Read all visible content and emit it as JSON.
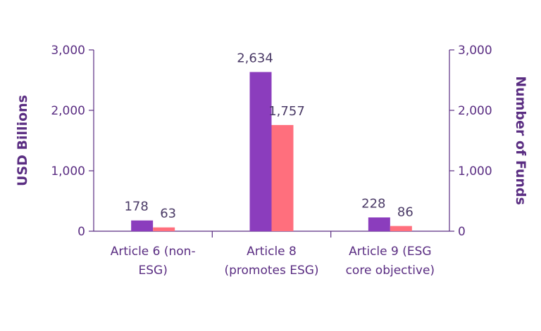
{
  "colors": {
    "axis": "#5a2d82",
    "series_1": "#8b3dbd",
    "series_2": "#ff6f7d"
  },
  "chart_data": {
    "type": "bar",
    "categories": [
      [
        "Article 6 (non-",
        "ESG)"
      ],
      [
        "Article 8",
        "(promotes ESG)"
      ],
      [
        "Article 9 (ESG",
        "core objective)"
      ]
    ],
    "series": [
      {
        "axis": "left",
        "values": [
          178,
          2634,
          228
        ],
        "labels": [
          "178",
          "2,634",
          "228"
        ]
      },
      {
        "axis": "right",
        "values": [
          63,
          1757,
          86
        ],
        "labels": [
          "63",
          "1,757",
          "86"
        ]
      }
    ],
    "ylabel": "USD Billions",
    "y2label": "Number of Funds",
    "ylim": [
      0,
      3000
    ],
    "y2lim": [
      0,
      3000
    ],
    "yticks": [
      "0",
      "1,000",
      "2,000",
      "3,000"
    ],
    "y2ticks": [
      "0",
      "1,000",
      "2,000",
      "3,000"
    ],
    "grid": false,
    "legend": "none"
  }
}
